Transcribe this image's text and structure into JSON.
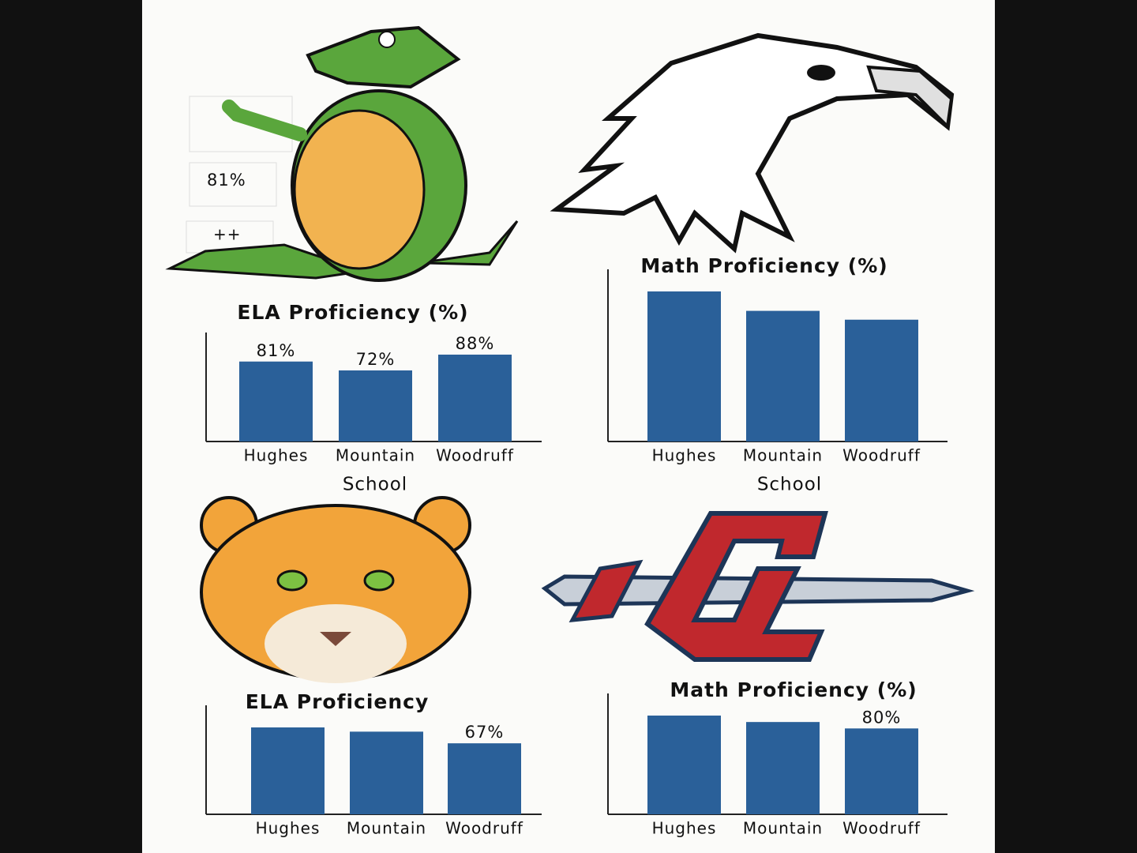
{
  "chart_data": [
    {
      "type": "bar",
      "title": "ELA Proficiency (%)",
      "x_label": "School",
      "categories": [
        "Hughes",
        "Mountain",
        "Woodruff"
      ],
      "values": [
        81,
        72,
        88
      ],
      "value_labels": [
        "81%",
        "72%",
        "88%"
      ],
      "color": "#2a6099",
      "annotations": [
        "81%",
        "++"
      ]
    },
    {
      "type": "bar",
      "title": "Math Proficiency (%)",
      "x_label": "School",
      "categories": [
        "Hughes",
        "Mountain",
        "Woodruff"
      ],
      "values": [
        85,
        74,
        69
      ],
      "color": "#2a6099"
    },
    {
      "type": "bar",
      "title": "ELA Proficiency",
      "categories": [
        "Hughes",
        "Mountain",
        "Woodruff"
      ],
      "values": [
        82,
        78,
        67
      ],
      "value_labels": [
        null,
        null,
        "67%"
      ],
      "color": "#2a6099"
    },
    {
      "type": "bar",
      "title": "Math Proficiency (%)",
      "categories": [
        "Hughes",
        "Mountain",
        "Woodruff"
      ],
      "values": [
        92,
        86,
        80
      ],
      "value_labels": [
        null,
        null,
        "80%"
      ],
      "color": "#2a6099"
    }
  ]
}
